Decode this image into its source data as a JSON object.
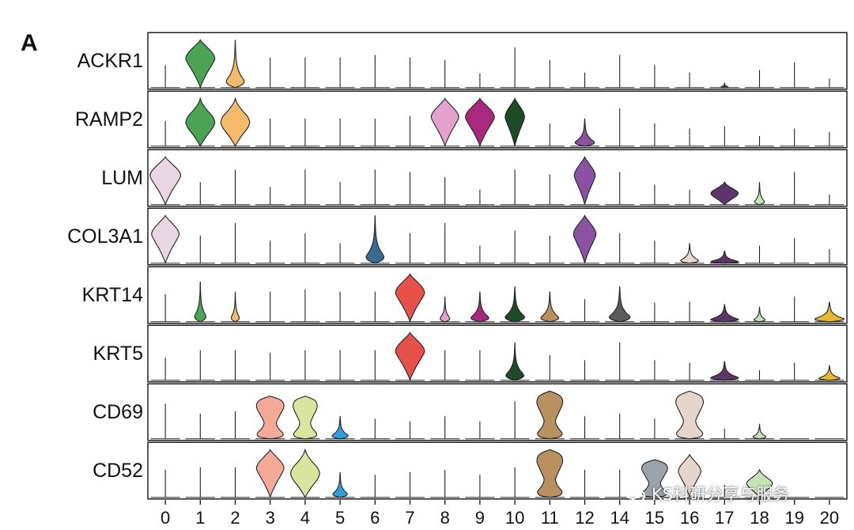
{
  "chart_data": {
    "type": "stacked-violin",
    "panel_label": "A",
    "genes": [
      "ACKR1",
      "RAMP2",
      "LUM",
      "COL3A1",
      "KRT14",
      "KRT5",
      "CD69",
      "CD52"
    ],
    "clusters": [
      "0",
      "1",
      "2",
      "3",
      "4",
      "5",
      "6",
      "7",
      "8",
      "9",
      "10",
      "11",
      "12",
      "14",
      "15",
      "16",
      "17",
      "18",
      "19",
      "20"
    ],
    "cluster_colors": [
      "#e8d6e2",
      "#4aa454",
      "#f5b96c",
      "#f5aa98",
      "#d7e59e",
      "#2f9fe0",
      "#3c6a8f",
      "#e8504a",
      "#e4a1cb",
      "#a8297e",
      "#1d4a27",
      "#bb9060",
      "#8b52a4",
      "#5b5b5b",
      "#9ca3a8",
      "#e4d6cc",
      "#5e356a",
      "#c6e3b6",
      "#cccccc",
      "#e8b830"
    ],
    "violins": [
      [
        {
          "t": "l",
          "h": 0.45
        },
        {
          "t": "v",
          "w": 0.9,
          "sh": "top"
        },
        {
          "t": "v",
          "w": 0.55,
          "sh": "bot"
        },
        {
          "t": "l",
          "h": 0.6
        },
        {
          "t": "l",
          "h": 0.6
        },
        {
          "t": "l",
          "h": 0.6
        },
        {
          "t": "l",
          "h": 0.65
        },
        {
          "t": "l",
          "h": 0.6
        },
        {
          "t": "l",
          "h": 0.55
        },
        {
          "t": "l",
          "h": 0.28
        },
        {
          "t": "l",
          "h": 0.8
        },
        {
          "t": "l",
          "h": 0.55
        },
        {
          "t": "l",
          "h": 0.3
        },
        {
          "t": "l",
          "h": 0.65
        },
        {
          "t": "l",
          "h": 0.45
        },
        {
          "t": "l",
          "h": 0.3
        },
        {
          "t": "v",
          "w": 0.22,
          "sh": "bot",
          "h": 0.1
        },
        {
          "t": "l",
          "h": 0.35
        },
        {
          "t": "l",
          "h": 0.5
        },
        {
          "t": "l",
          "h": 0.18
        }
      ],
      [
        {
          "t": "l",
          "h": 0.5
        },
        {
          "t": "v",
          "w": 0.9,
          "sh": "mid"
        },
        {
          "t": "v",
          "w": 0.9,
          "sh": "mid"
        },
        {
          "t": "l",
          "h": 0.55
        },
        {
          "t": "l",
          "h": 0.55
        },
        {
          "t": "l",
          "h": 0.55
        },
        {
          "t": "l",
          "h": 0.55
        },
        {
          "t": "l",
          "h": 0.6
        },
        {
          "t": "v",
          "w": 0.85,
          "sh": "top"
        },
        {
          "t": "v",
          "w": 0.9,
          "sh": "top"
        },
        {
          "t": "v",
          "w": 0.6,
          "sh": "top"
        },
        {
          "t": "l",
          "h": 0.45
        },
        {
          "t": "v",
          "w": 0.6,
          "sh": "bot",
          "h": 0.55
        },
        {
          "t": "l",
          "h": 0.75
        },
        {
          "t": "l",
          "h": 0.45
        },
        {
          "t": "l",
          "h": 0.35
        },
        {
          "t": "l",
          "h": 0.4
        },
        {
          "t": "l",
          "h": 0.2
        },
        {
          "t": "l",
          "h": 0.35
        },
        {
          "t": "l",
          "h": 0.28
        }
      ],
      [
        {
          "t": "v",
          "w": 0.95,
          "sh": "top"
        },
        {
          "t": "l",
          "h": 0.45
        },
        {
          "t": "l",
          "h": 0.7
        },
        {
          "t": "l",
          "h": 0.35
        },
        {
          "t": "l",
          "h": 0.7
        },
        {
          "t": "l",
          "h": 0.45
        },
        {
          "t": "l",
          "h": 0.7
        },
        {
          "t": "l",
          "h": 0.65
        },
        {
          "t": "l",
          "h": 0.55
        },
        {
          "t": "l",
          "h": 0.3
        },
        {
          "t": "l",
          "h": 0.7
        },
        {
          "t": "l",
          "h": 0.6
        },
        {
          "t": "v",
          "w": 0.65,
          "sh": "top"
        },
        {
          "t": "l",
          "h": 0.65
        },
        {
          "t": "l",
          "h": 0.4
        },
        {
          "t": "l",
          "h": 0.3
        },
        {
          "t": "v",
          "w": 0.85,
          "sh": "mid",
          "h": 0.45
        },
        {
          "t": "v",
          "w": 0.3,
          "sh": "bot",
          "h": 0.45
        },
        {
          "t": "l",
          "h": 0.65
        },
        {
          "t": "l",
          "h": 0.2
        }
      ],
      [
        {
          "t": "v",
          "w": 0.85,
          "sh": "top"
        },
        {
          "t": "l",
          "h": 0.55
        },
        {
          "t": "l",
          "h": 0.8
        },
        {
          "t": "l",
          "h": 0.45
        },
        {
          "t": "l",
          "h": 0.6
        },
        {
          "t": "l",
          "h": 0.4
        },
        {
          "t": "v",
          "w": 0.55,
          "sh": "bot"
        },
        {
          "t": "l",
          "h": 0.6
        },
        {
          "t": "l",
          "h": 0.8
        },
        {
          "t": "l",
          "h": 0.35
        },
        {
          "t": "l",
          "h": 0.65
        },
        {
          "t": "l",
          "h": 0.55
        },
        {
          "t": "v",
          "w": 0.7,
          "sh": "top"
        },
        {
          "t": "l",
          "h": 0.6
        },
        {
          "t": "l",
          "h": 0.45
        },
        {
          "t": "v",
          "w": 0.55,
          "sh": "bot",
          "h": 0.4
        },
        {
          "t": "v",
          "w": 0.85,
          "sh": "bot",
          "h": 0.25
        },
        {
          "t": "l",
          "h": 0.35
        },
        {
          "t": "l",
          "h": 0.5
        },
        {
          "t": "l",
          "h": 0.28
        }
      ],
      [
        {
          "t": "l",
          "h": 0.55
        },
        {
          "t": "v",
          "w": 0.35,
          "sh": "bot",
          "h": 0.8
        },
        {
          "t": "v",
          "w": 0.25,
          "sh": "bot",
          "h": 0.6
        },
        {
          "t": "l",
          "h": 0.6
        },
        {
          "t": "l",
          "h": 0.65
        },
        {
          "t": "l",
          "h": 0.6
        },
        {
          "t": "l",
          "h": 0.6
        },
        {
          "t": "v",
          "w": 0.9,
          "sh": "top"
        },
        {
          "t": "v",
          "w": 0.3,
          "sh": "bot",
          "h": 0.5
        },
        {
          "t": "v",
          "w": 0.55,
          "sh": "bot",
          "h": 0.6
        },
        {
          "t": "v",
          "w": 0.6,
          "sh": "bot",
          "h": 0.7
        },
        {
          "t": "v",
          "w": 0.55,
          "sh": "bot",
          "h": 0.6
        },
        {
          "t": "l",
          "h": 0.45
        },
        {
          "t": "v",
          "w": 0.65,
          "sh": "bot",
          "h": 0.7
        },
        {
          "t": "l",
          "h": 0.38
        },
        {
          "t": "l",
          "h": 0.4
        },
        {
          "t": "v",
          "w": 0.85,
          "sh": "bot",
          "h": 0.35
        },
        {
          "t": "v",
          "w": 0.35,
          "sh": "bot",
          "h": 0.3
        },
        {
          "t": "l",
          "h": 0.5
        },
        {
          "t": "v",
          "w": 0.9,
          "sh": "bot",
          "h": 0.4
        }
      ],
      [
        {
          "t": "l",
          "h": 0.45
        },
        {
          "t": "l",
          "h": 0.6
        },
        {
          "t": "l",
          "h": 0.6
        },
        {
          "t": "l",
          "h": 0.55
        },
        {
          "t": "l",
          "h": 0.6
        },
        {
          "t": "l",
          "h": 0.6
        },
        {
          "t": "l",
          "h": 0.6
        },
        {
          "t": "v",
          "w": 0.9,
          "sh": "top"
        },
        {
          "t": "l",
          "h": 0.6
        },
        {
          "t": "l",
          "h": 0.6
        },
        {
          "t": "v",
          "w": 0.55,
          "sh": "bot",
          "h": 0.75
        },
        {
          "t": "l",
          "h": 0.5
        },
        {
          "t": "l",
          "h": 0.4
        },
        {
          "t": "l",
          "h": 0.75
        },
        {
          "t": "l",
          "h": 0.4
        },
        {
          "t": "l",
          "h": 0.35
        },
        {
          "t": "v",
          "w": 0.85,
          "sh": "bot",
          "h": 0.38
        },
        {
          "t": "l",
          "h": 0.2
        },
        {
          "t": "l",
          "h": 0.35
        },
        {
          "t": "v",
          "w": 0.65,
          "sh": "bot",
          "h": 0.3
        }
      ],
      [
        {
          "t": "l",
          "h": 0.7
        },
        {
          "t": "l",
          "h": 0.5
        },
        {
          "t": "l",
          "h": 0.55
        },
        {
          "t": "v",
          "w": 0.85,
          "sh": "cup",
          "h": 0.85
        },
        {
          "t": "v",
          "w": 0.75,
          "sh": "cup",
          "h": 0.85
        },
        {
          "t": "v",
          "w": 0.5,
          "sh": "bot",
          "h": 0.45
        },
        {
          "t": "l",
          "h": 0.4
        },
        {
          "t": "l",
          "h": 0.35
        },
        {
          "t": "l",
          "h": 0.45
        },
        {
          "t": "l",
          "h": 0.35
        },
        {
          "t": "l",
          "h": 0.75
        },
        {
          "t": "v",
          "w": 0.8,
          "sh": "cup"
        },
        {
          "t": "l",
          "h": 0.45
        },
        {
          "t": "l",
          "h": 0.5
        },
        {
          "t": "l",
          "h": 0.4
        },
        {
          "t": "v",
          "w": 0.85,
          "sh": "cup"
        },
        {
          "t": "l",
          "h": 0.2
        },
        {
          "t": "v",
          "w": 0.4,
          "sh": "bot",
          "h": 0.3
        },
        {
          "t": "l",
          "h": 0.0
        },
        {
          "t": "l",
          "h": 0.0
        }
      ],
      [
        {
          "t": "l",
          "h": 0.55
        },
        {
          "t": "l",
          "h": 0.6
        },
        {
          "t": "l",
          "h": 0.6
        },
        {
          "t": "v",
          "w": 0.85,
          "sh": "top"
        },
        {
          "t": "v",
          "w": 0.9,
          "sh": "mid"
        },
        {
          "t": "v",
          "w": 0.45,
          "sh": "bot",
          "h": 0.5
        },
        {
          "t": "l",
          "h": 0.45
        },
        {
          "t": "l",
          "h": 0.5
        },
        {
          "t": "l",
          "h": 0.55
        },
        {
          "t": "l",
          "h": 0.45
        },
        {
          "t": "l",
          "h": 0.6
        },
        {
          "t": "v",
          "w": 0.8,
          "sh": "cup"
        },
        {
          "t": "l",
          "h": 0.55
        },
        {
          "t": "l",
          "h": 0.55
        },
        {
          "t": "v",
          "w": 0.8,
          "sh": "cup",
          "h": 0.75
        },
        {
          "t": "v",
          "w": 0.7,
          "sh": "top",
          "h": 0.85
        },
        {
          "t": "l",
          "h": 0.25
        },
        {
          "t": "v",
          "w": 0.8,
          "sh": "mid",
          "h": 0.55
        },
        {
          "t": "l",
          "h": 0.0
        },
        {
          "t": "l",
          "h": 0.0
        }
      ]
    ]
  },
  "watermark": {
    "text": "KS科研分享与服务",
    "icon": "wechat-icon"
  }
}
